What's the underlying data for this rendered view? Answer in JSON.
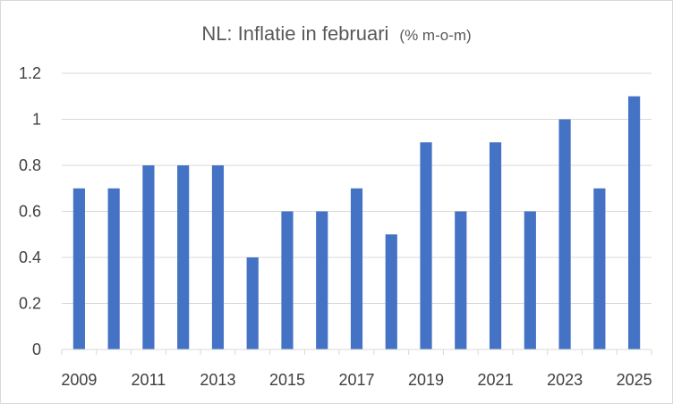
{
  "chart_data": {
    "type": "bar",
    "title": "NL: Inflatie in februari",
    "subtitle": "(% m-o-m)",
    "categories": [
      "2009",
      "2010",
      "2011",
      "2012",
      "2013",
      "2014",
      "2015",
      "2016",
      "2017",
      "2018",
      "2019",
      "2020",
      "2021",
      "2022",
      "2023",
      "2024",
      "2025"
    ],
    "x_tick_labels": [
      "2009",
      "2011",
      "2013",
      "2015",
      "2017",
      "2019",
      "2021",
      "2023",
      "2025"
    ],
    "values": [
      0.7,
      0.7,
      0.8,
      0.8,
      0.8,
      0.4,
      0.6,
      0.6,
      0.7,
      0.5,
      0.9,
      0.6,
      0.9,
      0.6,
      1.0,
      0.7,
      1.1
    ],
    "ylim": [
      0,
      1.2
    ],
    "y_ticks": [
      0,
      0.2,
      0.4,
      0.6,
      0.8,
      1.0,
      1.2
    ],
    "y_tick_labels": [
      "0",
      "0.2",
      "0.4",
      "0.6",
      "0.8",
      "1",
      "1.2"
    ],
    "xlabel": "",
    "ylabel": "",
    "grid": "horizontal",
    "legend": "none",
    "bar_color": "#4472C4",
    "grid_color": "#d9d9d9"
  }
}
